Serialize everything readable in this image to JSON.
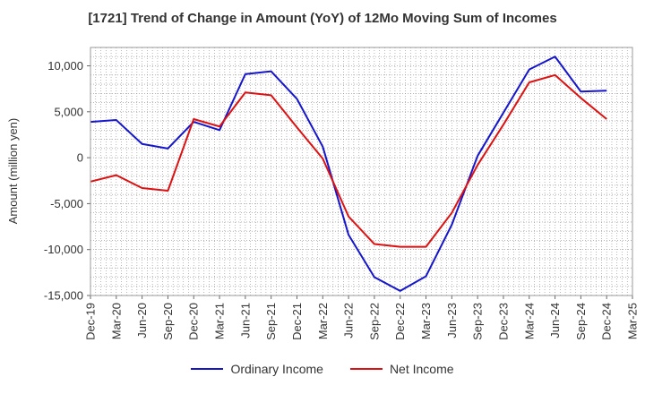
{
  "chart_data": {
    "type": "line",
    "title": "[1721]  Trend of Change in Amount (YoY) of 12Mo Moving Sum of Incomes",
    "xlabel": "",
    "ylabel": "Amount (million yen)",
    "categories": [
      "Dec-19",
      "Mar-20",
      "Jun-20",
      "Sep-20",
      "Dec-20",
      "Mar-21",
      "Jun-21",
      "Sep-21",
      "Dec-21",
      "Mar-22",
      "Jun-22",
      "Sep-22",
      "Dec-22",
      "Mar-23",
      "Jun-23",
      "Sep-23",
      "Dec-23",
      "Mar-24",
      "Jun-24",
      "Sep-24",
      "Dec-24",
      "Mar-25"
    ],
    "yticks": [
      "10,000",
      "5,000",
      "0",
      "-5,000",
      "-10,000",
      "-15,000"
    ],
    "ylim": [
      -15000,
      12000
    ],
    "grid": true,
    "legend_position": "bottom",
    "series": [
      {
        "name": "Ordinary Income",
        "color": "#1515cc",
        "values": [
          3900,
          4100,
          1500,
          1000,
          3900,
          3000,
          9100,
          9400,
          6400,
          1200,
          -8400,
          -13000,
          -14500,
          -12900,
          -7300,
          200,
          4900,
          9600,
          11000,
          7200,
          7300,
          null
        ]
      },
      {
        "name": "Net Income",
        "color": "#dd1111",
        "values": [
          -2600,
          -1900,
          -3300,
          -3600,
          4200,
          3400,
          7100,
          6800,
          3300,
          -100,
          -6400,
          -9400,
          -9700,
          -9700,
          -6000,
          -800,
          3600,
          8200,
          9000,
          6500,
          4200,
          null
        ]
      }
    ]
  }
}
